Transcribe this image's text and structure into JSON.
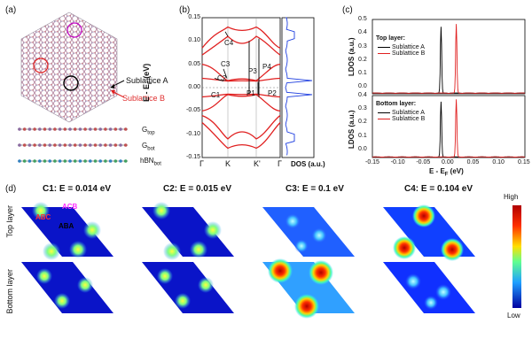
{
  "panel_labels": {
    "a": "(a)",
    "b": "(b)",
    "c": "(c)",
    "d": "(d)"
  },
  "panel_a": {
    "sublattice_a": "Sublattice A",
    "sublattice_b": "Sublattice B",
    "layer_top": "G",
    "layer_top_sub": "top",
    "layer_bot": "G",
    "layer_bot_sub": "bot",
    "layer_hbn": "hBN",
    "layer_hbn_sub": "bot",
    "colors": {
      "sub_b": "#e03030",
      "ring_magenta": "#c000c0",
      "ring_red": "#e02020"
    }
  },
  "panel_b": {
    "ylabel": "E - E",
    "ylabel_sub": "F",
    "ylabel_unit": " (eV)",
    "yticks": [
      "0.15",
      "0.10",
      "0.05",
      "0.00",
      "-0.05",
      "-0.10",
      "-0.15"
    ],
    "kpoints": [
      "Γ",
      "K",
      "K'",
      "Γ"
    ],
    "dos_label": "DOS (a.u.)",
    "point_labels": {
      "c1": "C1",
      "c2": "C2",
      "c3": "C3",
      "c4": "C4",
      "p1": "P1",
      "p2": "P2",
      "p3": "P3",
      "p4": "P4"
    }
  },
  "panel_c": {
    "top_title": "Top layer:",
    "bottom_title": "Bottom layer:",
    "legend_a": "Sublattice A",
    "legend_b": "Sublattice B",
    "ylabel": "LDOS (a.u.)",
    "xlabel": "E - E",
    "xlabel_sub": "F",
    "xlabel_unit": " (eV)",
    "yticks": [
      "0.5",
      "0.4",
      "0.3",
      "0.2",
      "0.1",
      "0.0"
    ],
    "xticks": [
      "-0.15",
      "-0.10",
      "-0.05",
      "0.00",
      "0.05",
      "0.10",
      "0.15"
    ]
  },
  "panel_d": {
    "columns": [
      "C1: E = 0.014 eV",
      "C2: E = 0.015 eV",
      "C3: E = 0.1 eV",
      "C4: E = 0.104 eV"
    ],
    "rows": [
      "Top layer",
      "Bottom layer"
    ],
    "stack_labels": {
      "acb": "ACB",
      "abc": "ABC",
      "aba": "ABA"
    },
    "colorbar_high": "High",
    "colorbar_low": "Low"
  },
  "chart_data": [
    {
      "type": "line",
      "title": "",
      "xlabel": "",
      "ylabel": "E - EF (eV)",
      "ylim": [
        -0.15,
        0.15
      ],
      "categories": [
        "Γ",
        "K",
        "K'",
        "Γ"
      ],
      "annotations": [
        "C1",
        "C2",
        "C3",
        "C4",
        "P1",
        "P2",
        "P3",
        "P4"
      ]
    },
    {
      "type": "line",
      "title": "Top layer:",
      "xlabel": "E - EF (eV)",
      "ylabel": "LDOS (a.u.)",
      "xlim": [
        -0.15,
        0.15
      ],
      "ylim": [
        0,
        0.5
      ],
      "series": [
        {
          "name": "Sublattice A",
          "color": "#000000",
          "peak_x": -0.015,
          "peak_y": 0.49
        },
        {
          "name": "Sublattice B",
          "color": "#e02020",
          "peak_x": 0.015,
          "peak_y": 0.51
        }
      ]
    },
    {
      "type": "line",
      "title": "Bottom layer:",
      "xlabel": "E - EF (eV)",
      "ylabel": "LDOS (a.u.)",
      "xlim": [
        -0.15,
        0.15
      ],
      "ylim": [
        0,
        0.5
      ],
      "series": [
        {
          "name": "Sublattice A",
          "color": "#000000",
          "peak_x": -0.015,
          "peak_y": 0.49
        },
        {
          "name": "Sublattice B",
          "color": "#e02020",
          "peak_x": 0.015,
          "peak_y": 0.51
        }
      ]
    }
  ]
}
